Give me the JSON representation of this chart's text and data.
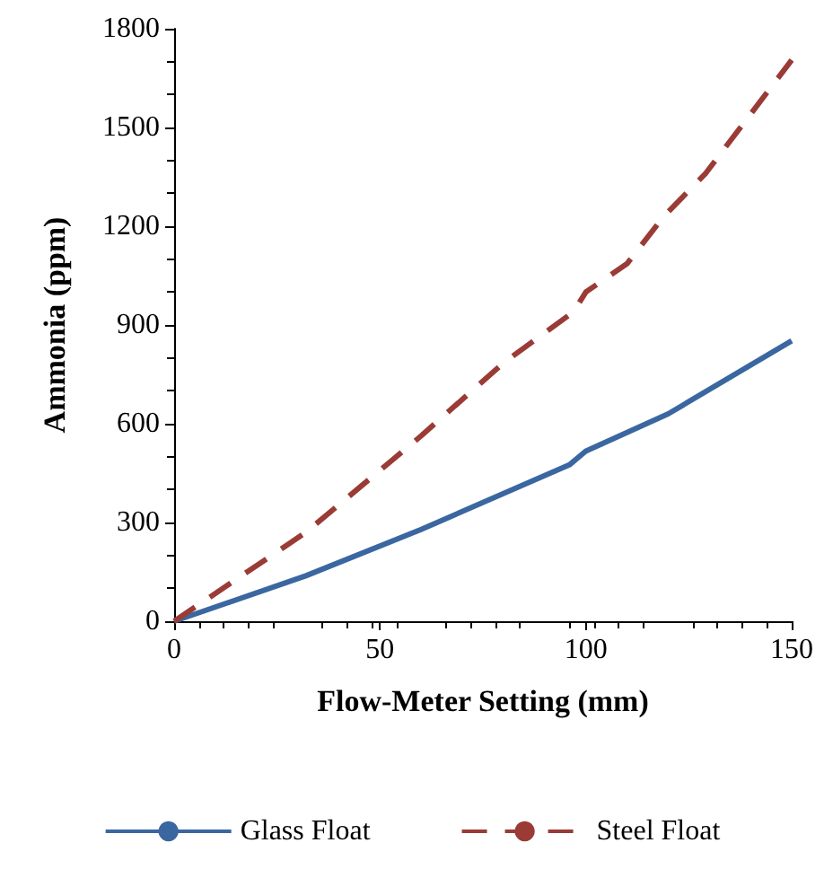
{
  "chart_data": {
    "type": "line",
    "xlabel": "Flow-Meter Setting (mm)",
    "ylabel": "Ammonia (ppm)",
    "xlim": [
      0,
      150
    ],
    "xticks": [
      0,
      50,
      100,
      150
    ],
    "ylim": [
      0,
      1800
    ],
    "yticks": [
      0,
      300,
      600,
      900,
      1200,
      1500,
      1800
    ],
    "grid": false,
    "legend": "bottom",
    "marker": "none",
    "series": [
      {
        "name": "Glass Float",
        "color": "#3a67a0",
        "line_style": "solid",
        "x": [
          0,
          32,
          60,
          96,
          100,
          120,
          150
        ],
        "values": [
          0,
          138,
          279,
          475,
          517,
          630,
          852
        ]
      },
      {
        "name": "Steel Float",
        "color": "#9a3b36",
        "line_style": "dashed",
        "x": [
          0,
          32,
          60,
          80,
          97,
          100,
          110,
          119,
          129,
          150
        ],
        "values": [
          0,
          270,
          563,
          785,
          940,
          1000,
          1086,
          1231,
          1359,
          1705
        ]
      }
    ]
  }
}
